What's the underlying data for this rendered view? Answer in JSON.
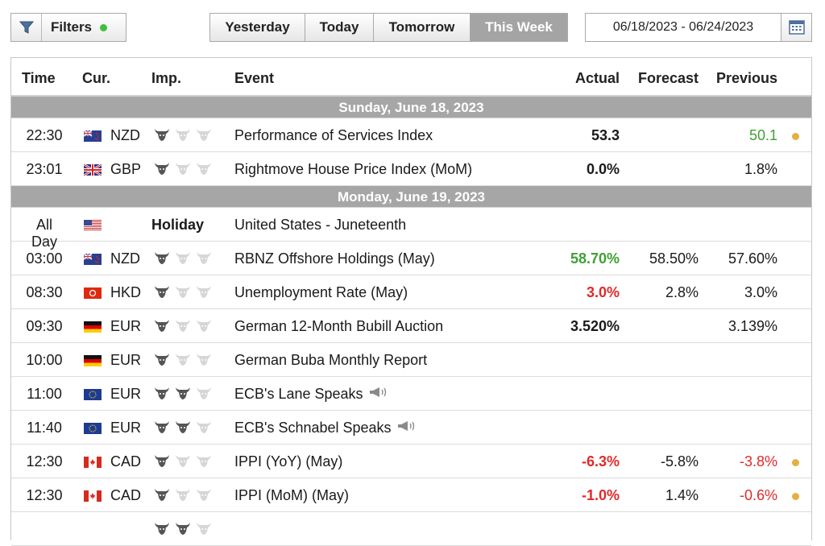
{
  "toolbar": {
    "filters_label": "Filters",
    "filter_active_color": "#3fbf3f",
    "periods": [
      "Yesterday",
      "Today",
      "Tomorrow",
      "This Week"
    ],
    "active_period": "This Week",
    "date_range": "06/18/2023 - 06/24/2023",
    "icons": {
      "filter": "funnel-icon",
      "calendar": "calendar-icon"
    }
  },
  "table": {
    "headers": {
      "time": "Time",
      "cur": "Cur.",
      "imp": "Imp.",
      "event": "Event",
      "actual": "Actual",
      "forecast": "Forecast",
      "previous": "Previous"
    }
  },
  "days": [
    {
      "date": "Sunday, June 18, 2023",
      "events": [
        {
          "time": "22:30",
          "flag": "nz",
          "cur": "NZD",
          "imp": 1,
          "event": "Performance of Services Index",
          "actual": "53.3",
          "actual_color": "",
          "forecast": "",
          "previous": "50.1",
          "previous_color": "pos",
          "dot": true
        },
        {
          "time": "23:01",
          "flag": "gb",
          "cur": "GBP",
          "imp": 1,
          "event": "Rightmove House Price Index (MoM)",
          "actual": "0.0%",
          "actual_color": "",
          "forecast": "",
          "previous": "1.8%",
          "previous_color": "",
          "dot": false
        }
      ]
    },
    {
      "date": "Monday, June 19, 2023",
      "events": [
        {
          "time": "All Day",
          "flag": "us",
          "cur": "",
          "holiday": "Holiday",
          "event": "United States - Juneteenth",
          "actual": "",
          "forecast": "",
          "previous": "",
          "dot": false
        },
        {
          "time": "03:00",
          "flag": "nz",
          "cur": "NZD",
          "imp": 1,
          "event": "RBNZ Offshore Holdings (May)",
          "actual": "58.70%",
          "actual_color": "pos",
          "forecast": "58.50%",
          "previous": "57.60%",
          "previous_color": "",
          "dot": false
        },
        {
          "time": "08:30",
          "flag": "hk",
          "cur": "HKD",
          "imp": 1,
          "event": "Unemployment Rate (May)",
          "actual": "3.0%",
          "actual_color": "neg",
          "forecast": "2.8%",
          "previous": "3.0%",
          "previous_color": "",
          "dot": false
        },
        {
          "time": "09:30",
          "flag": "de",
          "cur": "EUR",
          "imp": 1,
          "event": "German 12-Month Bubill Auction",
          "actual": "3.520%",
          "actual_color": "",
          "forecast": "",
          "previous": "3.139%",
          "previous_color": "",
          "dot": false
        },
        {
          "time": "10:00",
          "flag": "de",
          "cur": "EUR",
          "imp": 1,
          "event": "German Buba Monthly Report",
          "actual": "",
          "forecast": "",
          "previous": "",
          "dot": false
        },
        {
          "time": "11:00",
          "flag": "eu",
          "cur": "EUR",
          "imp": 2,
          "event": "ECB's Lane Speaks",
          "speech": true,
          "actual": "",
          "forecast": "",
          "previous": "",
          "dot": false
        },
        {
          "time": "11:40",
          "flag": "eu",
          "cur": "EUR",
          "imp": 2,
          "event": "ECB's Schnabel Speaks",
          "speech": true,
          "actual": "",
          "forecast": "",
          "previous": "",
          "dot": false
        },
        {
          "time": "12:30",
          "flag": "ca",
          "cur": "CAD",
          "imp": 1,
          "event": "IPPI (YoY) (May)",
          "actual": "-6.3%",
          "actual_color": "neg",
          "forecast": "-5.8%",
          "previous": "-3.8%",
          "previous_color": "neg",
          "dot": true
        },
        {
          "time": "12:30",
          "flag": "ca",
          "cur": "CAD",
          "imp": 1,
          "event": "IPPI (MoM) (May)",
          "actual": "-1.0%",
          "actual_color": "neg",
          "forecast": "1.4%",
          "previous": "-0.6%",
          "previous_color": "neg",
          "dot": true
        },
        {
          "time": "",
          "flag": "",
          "cur": "",
          "imp": 2,
          "event": "",
          "actual": "",
          "forecast": "",
          "previous": "",
          "dot": false
        }
      ]
    }
  ],
  "colors": {
    "dot": "#e3b041",
    "positive": "#3fa035",
    "negative": "#e02a2a",
    "day_header": "#a6a6a6",
    "bull_on": "#555555",
    "bull_off": "#d6d6d6"
  }
}
